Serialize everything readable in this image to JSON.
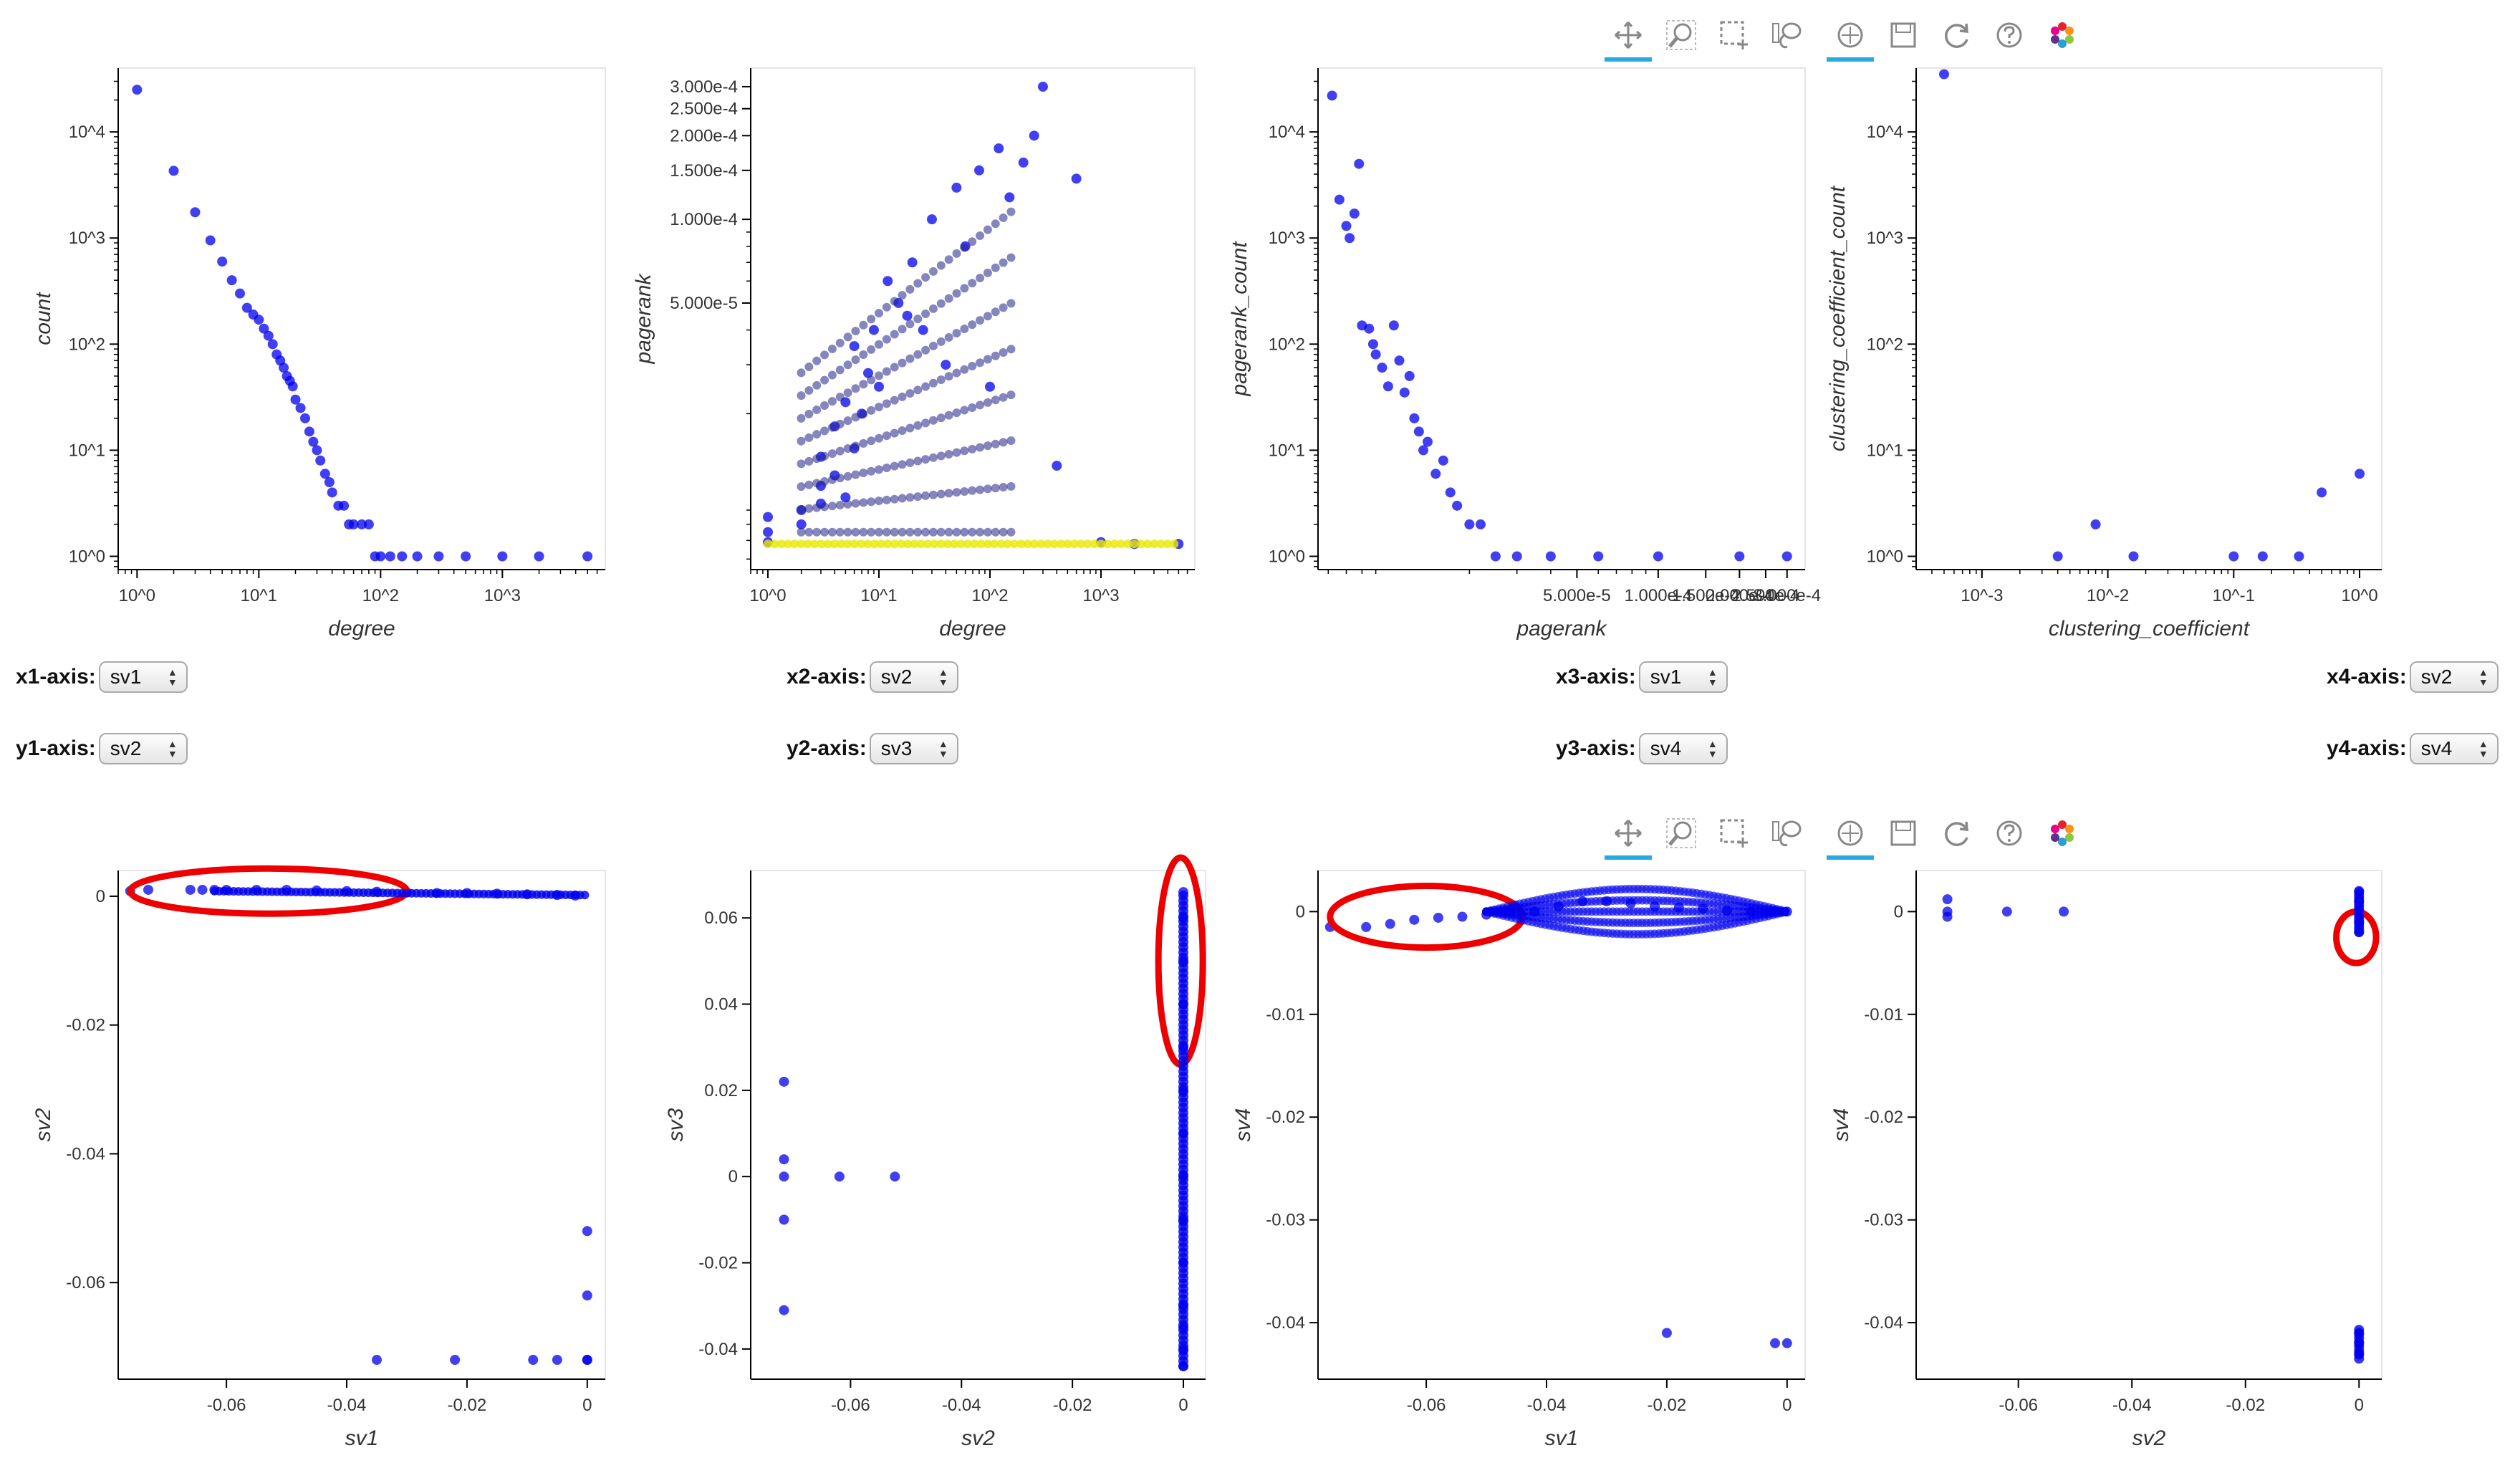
{
  "colors": {
    "point": "#0000ee",
    "highlight": "#ee0000",
    "active_tool": "#26aae1"
  },
  "toolbar_top": {
    "tools": [
      {
        "name": "pan-tool",
        "icon": "pan-icon",
        "active": true
      },
      {
        "name": "wheel-zoom-tool",
        "icon": "wheel-zoom-icon",
        "active": false
      },
      {
        "name": "box-select-tool",
        "icon": "box-select-icon",
        "active": false
      },
      {
        "name": "lasso-select-tool",
        "icon": "lasso-icon",
        "active": false
      },
      {
        "name": "sep"
      },
      {
        "name": "wheel-pan-tool",
        "icon": "wheel-pan-icon",
        "active": true
      },
      {
        "name": "save-tool",
        "icon": "save-icon",
        "active": false
      },
      {
        "name": "reset-tool",
        "icon": "reset-icon",
        "active": false
      },
      {
        "name": "help-tool",
        "icon": "help-icon",
        "active": false
      },
      {
        "name": "bokeh-logo",
        "icon": "bokeh-logo",
        "active": false
      }
    ]
  },
  "widgets": [
    {
      "label": "x1-axis:",
      "value": "sv1"
    },
    {
      "label": "x2-axis:",
      "value": "sv2"
    },
    {
      "label": "x3-axis:",
      "value": "sv1"
    },
    {
      "label": "x4-axis:",
      "value": "sv2"
    },
    {
      "label": "y1-axis:",
      "value": "sv2"
    },
    {
      "label": "y2-axis:",
      "value": "sv3"
    },
    {
      "label": "y3-axis:",
      "value": "sv4"
    },
    {
      "label": "y4-axis:",
      "value": "sv4"
    }
  ],
  "chart_data": [
    {
      "type": "scatter",
      "id": "degree-count",
      "xlabel": "degree",
      "ylabel": "count",
      "xscale": "log",
      "yscale": "log",
      "xlim": [
        0.7,
        7000
      ],
      "ylim": [
        0.75,
        40000
      ],
      "xticks": [
        {
          "v": 1,
          "label": "10^0"
        },
        {
          "v": 10,
          "label": "10^1"
        },
        {
          "v": 100,
          "label": "10^2"
        },
        {
          "v": 1000,
          "label": "10^3"
        }
      ],
      "yticks": [
        {
          "v": 1,
          "label": "10^0"
        },
        {
          "v": 10,
          "label": "10^1"
        },
        {
          "v": 100,
          "label": "10^2"
        },
        {
          "v": 1000,
          "label": "10^3"
        },
        {
          "v": 10000,
          "label": "10^4"
        }
      ],
      "x": [
        1,
        2,
        3,
        4,
        5,
        6,
        7,
        8,
        9,
        10,
        11,
        12,
        13,
        14,
        15,
        16,
        17,
        18,
        19,
        20,
        22,
        24,
        26,
        28,
        30,
        32,
        35,
        38,
        40,
        45,
        50,
        55,
        60,
        70,
        80,
        90,
        100,
        120,
        150,
        200,
        300,
        500,
        1000,
        2000,
        5000
      ],
      "y": [
        25000,
        4300,
        1750,
        950,
        600,
        400,
        300,
        220,
        190,
        170,
        140,
        120,
        100,
        80,
        70,
        60,
        50,
        45,
        40,
        30,
        25,
        20,
        15,
        12,
        10,
        8,
        6,
        5,
        4,
        3,
        3,
        2,
        2,
        2,
        2,
        1,
        1,
        1,
        1,
        1,
        1,
        1,
        1,
        1,
        1
      ]
    },
    {
      "type": "scatter",
      "id": "degree-pagerank",
      "xlabel": "degree",
      "ylabel": "pagerank",
      "xscale": "log",
      "yscale": "log",
      "xlim": [
        0.7,
        7000
      ],
      "ylim": [
        5.5e-06,
        0.00035
      ],
      "xticks": [
        {
          "v": 1,
          "label": "10^0"
        },
        {
          "v": 10,
          "label": "10^1"
        },
        {
          "v": 100,
          "label": "10^2"
        },
        {
          "v": 1000,
          "label": "10^3"
        }
      ],
      "yticks": [
        {
          "v": 5e-05,
          "label": "5.000e-5"
        },
        {
          "v": 0.0001,
          "label": "1.000e-4"
        },
        {
          "v": 0.00015,
          "label": "1.500e-4"
        },
        {
          "v": 0.0002,
          "label": "2.000e-4"
        },
        {
          "v": 0.00025,
          "label": "2.500e-4"
        },
        {
          "v": 0.0003,
          "label": "3.000e-4"
        }
      ],
      "x": [
        1,
        1,
        1,
        2,
        2,
        3,
        3,
        3,
        4,
        4,
        5,
        5,
        6,
        6,
        7,
        8,
        9,
        10,
        12,
        15,
        18,
        20,
        25,
        30,
        40,
        50,
        60,
        80,
        100,
        120,
        150,
        200,
        250,
        300,
        400,
        600,
        1000,
        2000,
        5000
      ],
      "y": [
        6.9e-06,
        7.5e-06,
        8.5e-06,
        8e-06,
        9e-06,
        9.5e-06,
        1.1e-05,
        1.4e-05,
        1.2e-05,
        1.8e-05,
        1e-05,
        2.2e-05,
        1.5e-05,
        3.5e-05,
        2e-05,
        2.8e-05,
        4e-05,
        2.5e-05,
        6e-05,
        5e-05,
        4.5e-05,
        7e-05,
        4e-05,
        0.0001,
        3e-05,
        0.00013,
        8e-05,
        0.00015,
        2.5e-05,
        0.00018,
        0.00012,
        0.00016,
        0.0002,
        0.0003,
        1.3e-05,
        0.00014,
        6.9e-06,
        6.8e-06,
        6.8e-06
      ]
    },
    {
      "type": "scatter",
      "id": "pagerank-count",
      "xlabel": "pagerank",
      "ylabel": "pagerank_count",
      "xscale": "log",
      "yscale": "log",
      "xlim": [
        5.5e-06,
        0.00035
      ],
      "ylim": [
        0.75,
        40000
      ],
      "xticks": [
        {
          "v": 5e-05,
          "label": "5.000e-5"
        },
        {
          "v": 0.0001,
          "label": "1.000e-4"
        },
        {
          "v": 0.00015,
          "label": "1.500e-4"
        },
        {
          "v": 0.0002,
          "label": "2.000e-4"
        },
        {
          "v": 0.00025,
          "label": "2.500e-4"
        },
        {
          "v": 0.0003,
          "label": "3.000e-4"
        }
      ],
      "yticks": [
        {
          "v": 1,
          "label": "10^0"
        },
        {
          "v": 10,
          "label": "10^1"
        },
        {
          "v": 100,
          "label": "10^2"
        },
        {
          "v": 1000,
          "label": "10^3"
        },
        {
          "v": 10000,
          "label": "10^4"
        }
      ],
      "x": [
        6.2e-06,
        6.6e-06,
        7e-06,
        7.2e-06,
        7.5e-06,
        7.8e-06,
        8e-06,
        8.5e-06,
        8.8e-06,
        9e-06,
        9.5e-06,
        1e-05,
        1.05e-05,
        1.1e-05,
        1.15e-05,
        1.2e-05,
        1.25e-05,
        1.3e-05,
        1.35e-05,
        1.4e-05,
        1.5e-05,
        1.6e-05,
        1.7e-05,
        1.8e-05,
        2e-05,
        2.2e-05,
        2.5e-05,
        3e-05,
        4e-05,
        6e-05,
        0.0001,
        0.0002,
        0.0003
      ],
      "y": [
        22000,
        2300,
        1300,
        1000,
        1700,
        5000,
        150,
        140,
        100,
        80,
        60,
        40,
        150,
        70,
        35,
        50,
        20,
        15,
        10,
        12,
        6,
        8,
        4,
        3,
        2,
        2,
        1,
        1,
        1,
        1,
        1,
        1,
        1
      ]
    },
    {
      "type": "scatter",
      "id": "clustering-count",
      "xlabel": "clustering_coefficient",
      "ylabel": "clustering_coefficient_count",
      "xscale": "log",
      "yscale": "log",
      "xlim": [
        0.0003,
        1.5
      ],
      "ylim": [
        0.75,
        40000
      ],
      "xticks": [
        {
          "v": 0.001,
          "label": "10^-3"
        },
        {
          "v": 0.01,
          "label": "10^-2"
        },
        {
          "v": 0.1,
          "label": "10^-1"
        },
        {
          "v": 1,
          "label": "10^0"
        }
      ],
      "yticks": [
        {
          "v": 1,
          "label": "10^0"
        },
        {
          "v": 10,
          "label": "10^1"
        },
        {
          "v": 100,
          "label": "10^2"
        },
        {
          "v": 1000,
          "label": "10^3"
        },
        {
          "v": 10000,
          "label": "10^4"
        }
      ],
      "x": [
        0.0005,
        0.004,
        0.008,
        0.016,
        0.1,
        0.17,
        0.33,
        0.5,
        1
      ],
      "y": [
        35000,
        1,
        2,
        1,
        1,
        1,
        1,
        4,
        6
      ]
    },
    {
      "type": "scatter",
      "id": "sv1-sv2",
      "xlabel": "sv1",
      "ylabel": "sv2",
      "xlim": [
        -0.078,
        0.003
      ],
      "ylim": [
        -0.075,
        0.004
      ],
      "xticks": [
        {
          "v": -0.06,
          "label": "-0.06"
        },
        {
          "v": -0.04,
          "label": "-0.04"
        },
        {
          "v": -0.02,
          "label": "-0.02"
        },
        {
          "v": 0,
          "label": "0"
        }
      ],
      "yticks": [
        {
          "v": 0,
          "label": "0"
        },
        {
          "v": -0.02,
          "label": "-0.02"
        },
        {
          "v": -0.04,
          "label": "-0.04"
        },
        {
          "v": -0.06,
          "label": "-0.06"
        }
      ],
      "x": [
        -0.076,
        -0.073,
        -0.066,
        -0.064,
        -0.062,
        -0.06,
        -0.055,
        -0.05,
        -0.045,
        -0.04,
        -0.035,
        -0.03,
        -0.025,
        -0.02,
        -0.015,
        -0.01,
        -0.005,
        -0.002,
        0,
        0,
        0,
        -0.035,
        -0.022,
        -0.009,
        -0.005,
        0
      ],
      "y": [
        0.0008,
        0.001,
        0.001,
        0.001,
        0.001,
        0.001,
        0.001,
        0.001,
        0.0009,
        0.0008,
        0.0007,
        0.0006,
        0.0005,
        0.0005,
        0.0004,
        0.0003,
        0.0002,
        0.0001,
        -0.052,
        -0.062,
        -0.072,
        -0.072,
        -0.072,
        -0.072,
        -0.072,
        -0.072
      ],
      "annotations": [
        {
          "type": "ellipse",
          "cx": -0.053,
          "cy": 0.0008,
          "rx": 0.023,
          "ry": 0.0035
        }
      ]
    },
    {
      "type": "scatter",
      "id": "sv2-sv3",
      "xlabel": "sv2",
      "ylabel": "sv3",
      "xlim": [
        -0.078,
        0.004
      ],
      "ylim": [
        -0.047,
        0.071
      ],
      "xticks": [
        {
          "v": -0.06,
          "label": "-0.06"
        },
        {
          "v": -0.04,
          "label": "-0.04"
        },
        {
          "v": -0.02,
          "label": "-0.02"
        },
        {
          "v": 0,
          "label": "0"
        }
      ],
      "yticks": [
        {
          "v": 0.06,
          "label": "0.06"
        },
        {
          "v": 0.04,
          "label": "0.04"
        },
        {
          "v": 0.02,
          "label": "0.02"
        },
        {
          "v": 0,
          "label": "0"
        },
        {
          "v": -0.02,
          "label": "-0.02"
        },
        {
          "v": -0.04,
          "label": "-0.04"
        }
      ],
      "x": [
        -0.072,
        -0.072,
        -0.072,
        -0.072,
        -0.072,
        -0.062,
        -0.052,
        0,
        0,
        0,
        0,
        0,
        0,
        0,
        0,
        0,
        0,
        0,
        0,
        0,
        0
      ],
      "y": [
        0.022,
        0.004,
        0,
        -0.01,
        -0.031,
        0,
        0,
        0.066,
        0.06,
        0.05,
        0.04,
        0.03,
        0.02,
        0.01,
        0,
        -0.01,
        -0.02,
        -0.03,
        -0.035,
        -0.04,
        -0.044
      ],
      "annotations": [
        {
          "type": "ellipse",
          "cx": -0.0005,
          "cy": 0.05,
          "rx": 0.004,
          "ry": 0.024
        }
      ]
    },
    {
      "type": "scatter",
      "id": "sv1-sv4",
      "xlabel": "sv1",
      "ylabel": "sv4",
      "xlim": [
        -0.078,
        0.003
      ],
      "ylim": [
        -0.0455,
        0.004
      ],
      "xticks": [
        {
          "v": -0.06,
          "label": "-0.06"
        },
        {
          "v": -0.04,
          "label": "-0.04"
        },
        {
          "v": -0.02,
          "label": "-0.02"
        },
        {
          "v": 0,
          "label": "0"
        }
      ],
      "yticks": [
        {
          "v": 0,
          "label": "0"
        },
        {
          "v": -0.01,
          "label": "-0.01"
        },
        {
          "v": -0.02,
          "label": "-0.02"
        },
        {
          "v": -0.03,
          "label": "-0.03"
        },
        {
          "v": -0.04,
          "label": "-0.04"
        }
      ],
      "x": [
        -0.076,
        -0.07,
        -0.066,
        -0.062,
        -0.058,
        -0.054,
        -0.05,
        -0.046,
        -0.042,
        -0.038,
        -0.034,
        -0.03,
        -0.026,
        -0.022,
        -0.018,
        -0.014,
        -0.01,
        -0.006,
        -0.002,
        0,
        -0.02,
        -0.002,
        0
      ],
      "y": [
        -0.0015,
        -0.0015,
        -0.0012,
        -0.0008,
        -0.0006,
        -0.0005,
        -0.0003,
        0,
        0,
        0.0005,
        0.001,
        0.001,
        0.0008,
        0.0005,
        0.0004,
        0.0003,
        0.0001,
        0,
        0,
        0,
        -0.041,
        -0.042,
        -0.042
      ],
      "annotations": [
        {
          "type": "ellipse",
          "cx": -0.06,
          "cy": -0.0005,
          "rx": 0.016,
          "ry": 0.003
        }
      ]
    },
    {
      "type": "scatter",
      "id": "sv2-sv4",
      "xlabel": "sv2",
      "ylabel": "sv4",
      "xlim": [
        -0.078,
        0.004
      ],
      "ylim": [
        -0.0455,
        0.004
      ],
      "xticks": [
        {
          "v": -0.06,
          "label": "-0.06"
        },
        {
          "v": -0.04,
          "label": "-0.04"
        },
        {
          "v": -0.02,
          "label": "-0.02"
        },
        {
          "v": 0,
          "label": "0"
        }
      ],
      "yticks": [
        {
          "v": 0,
          "label": "0"
        },
        {
          "v": -0.01,
          "label": "-0.01"
        },
        {
          "v": -0.02,
          "label": "-0.02"
        },
        {
          "v": -0.03,
          "label": "-0.03"
        },
        {
          "v": -0.04,
          "label": "-0.04"
        }
      ],
      "x": [
        -0.0725,
        -0.0725,
        -0.0725,
        -0.062,
        -0.052,
        0,
        0,
        0,
        0,
        0,
        0,
        0,
        0
      ],
      "y": [
        0.0012,
        0,
        -0.0005,
        0,
        0,
        0.002,
        0.001,
        0,
        -0.001,
        -0.002,
        -0.041,
        -0.042,
        -0.043
      ],
      "annotations": [
        {
          "type": "ellipse",
          "cx": -0.0005,
          "cy": -0.0025,
          "rx": 0.0035,
          "ry": 0.0025
        }
      ]
    }
  ]
}
